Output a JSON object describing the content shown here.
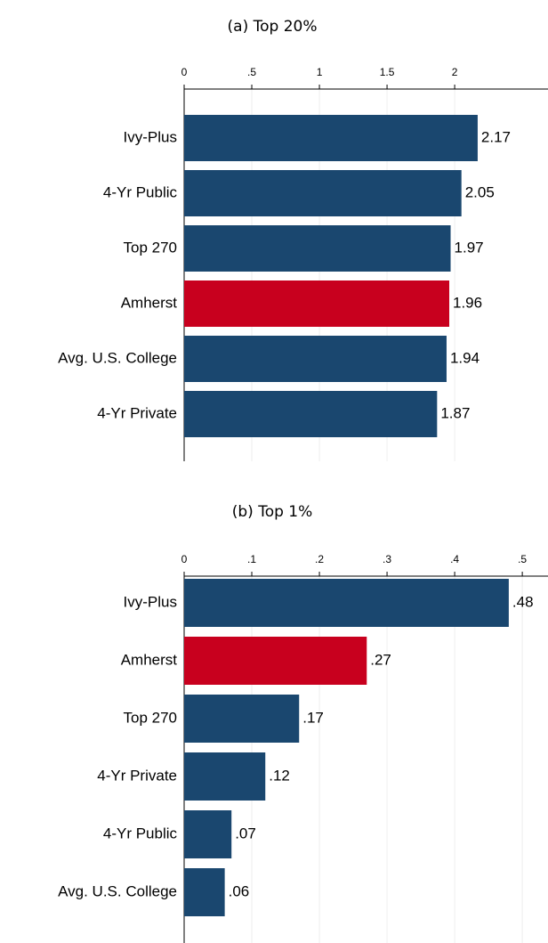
{
  "chart_data": [
    {
      "type": "bar",
      "title": "(a) Top 20%",
      "categories": [
        "Ivy-Plus",
        "4-Yr Public",
        "Top 270",
        "Amherst",
        "Avg. U.S. College",
        "4-Yr Private"
      ],
      "values": [
        2.17,
        2.05,
        1.97,
        1.96,
        1.94,
        1.87
      ],
      "colors": [
        "#1a476f",
        "#1a476f",
        "#1a476f",
        "#c8001e",
        "#1a476f",
        "#1a476f"
      ],
      "xlim": [
        0,
        2.69
      ],
      "xticks": [
        0,
        {
          "value": 0.5,
          "label": ".5"
        },
        1,
        1.5,
        2
      ],
      "grid": true
    },
    {
      "type": "bar",
      "title": "(b) Top 1%",
      "categories": [
        "Ivy-Plus",
        "Amherst",
        "Top 270",
        "4-Yr Private",
        "4-Yr Public",
        "Avg. U.S. College"
      ],
      "values": [
        0.48,
        0.27,
        0.17,
        0.12,
        0.07,
        0.06
      ],
      "value_labels": [
        ".48",
        ".27",
        ".17",
        ".12",
        ".07",
        ".06"
      ],
      "colors": [
        "#1a476f",
        "#c8001e",
        "#1a476f",
        "#1a476f",
        "#1a476f",
        "#1a476f"
      ],
      "xlim": [
        0,
        0.538
      ],
      "xticks": [
        0,
        {
          "value": 0.1,
          "label": ".1"
        },
        {
          "value": 0.2,
          "label": ".2"
        },
        {
          "value": 0.3,
          "label": ".3"
        },
        {
          "value": 0.4,
          "label": ".4"
        },
        {
          "value": 0.5,
          "label": ".5"
        }
      ],
      "grid": true
    }
  ]
}
